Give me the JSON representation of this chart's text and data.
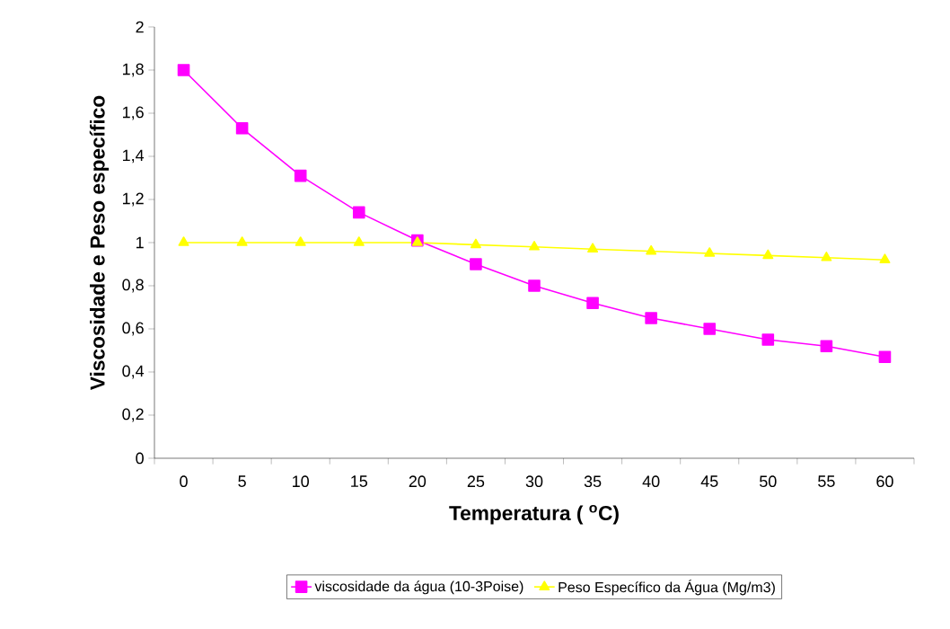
{
  "chart_data": {
    "type": "line",
    "xlabel": "Temperatura ( $^{o}$C)",
    "ylabel": "Viscosidade e Peso específico",
    "categories": [
      "0",
      "5",
      "10",
      "15",
      "20",
      "25",
      "30",
      "35",
      "40",
      "45",
      "50",
      "55",
      "60"
    ],
    "series": [
      {
        "name": "viscosidade da água (10-3Poise)",
        "color": "#ff00ff",
        "marker": "square",
        "values": [
          1.8,
          1.53,
          1.31,
          1.14,
          1.01,
          0.9,
          0.8,
          0.72,
          0.65,
          0.6,
          0.55,
          0.52,
          0.47
        ]
      },
      {
        "name": "Peso Específico da Água (Mg/m3)",
        "color": "#ffff00",
        "marker": "triangle",
        "values": [
          1.0,
          1.0,
          1.0,
          1.0,
          1.0,
          0.99,
          0.98,
          0.97,
          0.96,
          0.95,
          0.94,
          0.93,
          0.92
        ]
      }
    ],
    "ylim": [
      0,
      2
    ],
    "yticks": [
      0,
      {
        "value": 0.2,
        "label": "0,2"
      },
      {
        "value": 0.4,
        "label": "0,4"
      },
      {
        "value": 0.6,
        "label": "0,6"
      },
      {
        "value": 0.8,
        "label": "0,8"
      },
      1,
      {
        "value": 1.2,
        "label": "1,2"
      },
      {
        "value": 1.4,
        "label": "1,4"
      },
      {
        "value": 1.6,
        "label": "1,6"
      },
      {
        "value": 1.8,
        "label": "1,8"
      },
      2
    ],
    "grid": false,
    "legend": "bottom",
    "line_style": "solid"
  }
}
